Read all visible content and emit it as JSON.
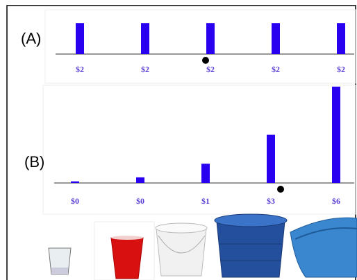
{
  "chart_data": [
    {
      "type": "bar",
      "title": "(A)",
      "categories": [
        null,
        null,
        null,
        null,
        null
      ],
      "values": [
        2,
        2,
        2,
        2,
        2
      ],
      "value_labels": [
        "$2",
        "$2",
        "$2",
        "$2",
        "$2"
      ],
      "color": "#2a00f0",
      "ylim": [
        0,
        2.1
      ]
    },
    {
      "type": "bar",
      "title": "(B)",
      "categories": [
        null,
        null,
        null,
        null,
        null
      ],
      "values": [
        0.1,
        0.35,
        1.2,
        3,
        6
      ],
      "value_labels": [
        "$0",
        "$0",
        "$1",
        "$3",
        "$6"
      ],
      "color": "#2a00f0",
      "ylim": [
        0,
        6
      ]
    }
  ]
}
